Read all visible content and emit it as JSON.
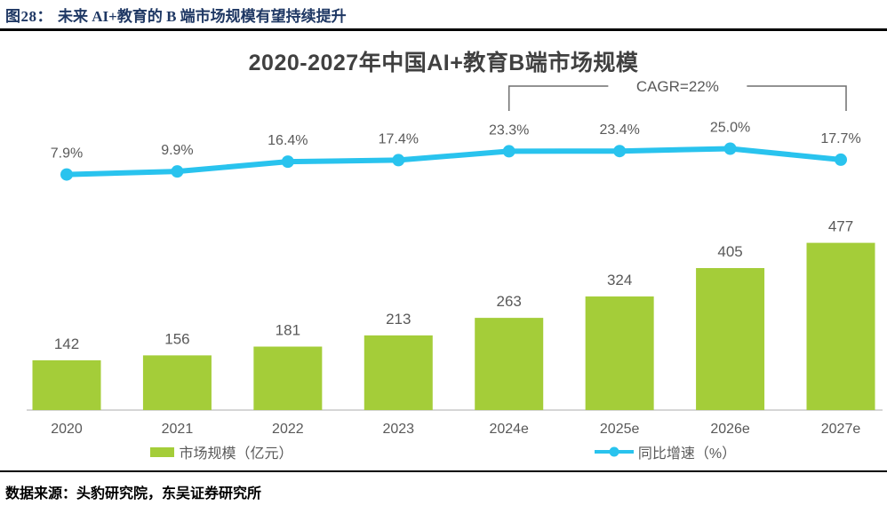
{
  "header": {
    "figure_label": "图28：",
    "figure_title": "未来 AI+教育的 B 端市场规模有望持续提升"
  },
  "chart_data": {
    "type": "bar",
    "title": "2020-2027年中国AI+教育B端市场规模",
    "categories": [
      "2020",
      "2021",
      "2022",
      "2023",
      "2024e",
      "2025e",
      "2026e",
      "2027e"
    ],
    "series": [
      {
        "name": "市场规模（亿元）",
        "type": "bar",
        "values": [
          142,
          156,
          181,
          213,
          263,
          324,
          405,
          477
        ],
        "color": "#A4CD39"
      },
      {
        "name": "同比增速（%）",
        "type": "line",
        "values": [
          7.9,
          9.9,
          16.4,
          17.4,
          23.3,
          23.4,
          25.0,
          17.7
        ],
        "color": "#29C3EE"
      }
    ],
    "data_labels": {
      "bar": [
        "142",
        "156",
        "181",
        "213",
        "263",
        "324",
        "405",
        "477"
      ],
      "line": [
        "7.9%",
        "9.9%",
        "16.4%",
        "17.4%",
        "23.3%",
        "23.4%",
        "25.0%",
        "17.7%"
      ]
    },
    "annotation": {
      "text": "CAGR=22%",
      "span": [
        "2024e",
        "2027e"
      ]
    },
    "legend_position": "bottom",
    "grid": false,
    "y_axis_visible": false
  },
  "footer": {
    "source": "数据来源：头豹研究院，东吴证券研究所"
  },
  "colors": {
    "bar": "#A4CD39",
    "line": "#29C3EE",
    "header_text": "#1F3864",
    "chart_title": "#404040",
    "label": "#595959",
    "axis": "#C9C9C9",
    "bracket": "#6E6E6E"
  }
}
